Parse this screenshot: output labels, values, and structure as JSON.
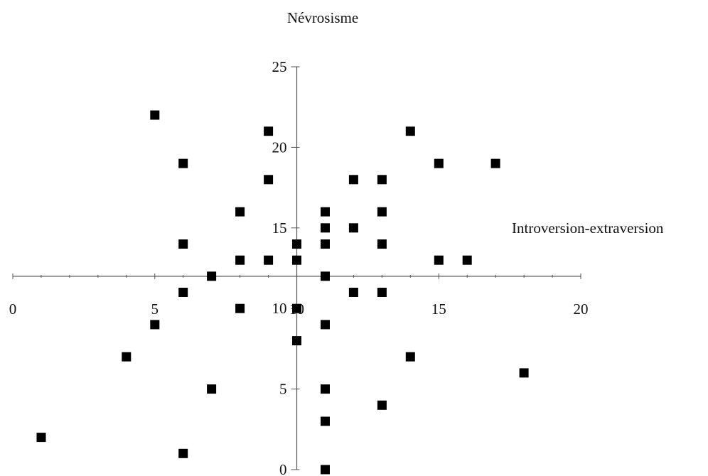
{
  "chart_data": {
    "type": "scatter",
    "title": "",
    "xlabel": "Introversion-extraversion",
    "ylabel": "Névrosisme",
    "xlim": [
      0,
      20
    ],
    "ylim": [
      0,
      25
    ],
    "x_ticks": [
      "0",
      "5",
      "10",
      "15",
      "20"
    ],
    "y_ticks": [
      "0",
      "5",
      "10",
      "15",
      "20",
      "25"
    ],
    "axis_crossing": {
      "x": 10,
      "y": 12
    },
    "grid": false,
    "legend": "none",
    "marker": "square",
    "marker_color": "#000000",
    "points": [
      {
        "x": 5,
        "y": 22
      },
      {
        "x": 9,
        "y": 21
      },
      {
        "x": 14,
        "y": 21
      },
      {
        "x": 6,
        "y": 19
      },
      {
        "x": 15,
        "y": 19
      },
      {
        "x": 17,
        "y": 19
      },
      {
        "x": 9,
        "y": 18
      },
      {
        "x": 12,
        "y": 18
      },
      {
        "x": 13,
        "y": 18
      },
      {
        "x": 8,
        "y": 16
      },
      {
        "x": 11,
        "y": 16
      },
      {
        "x": 13,
        "y": 16
      },
      {
        "x": 11,
        "y": 15
      },
      {
        "x": 12,
        "y": 15
      },
      {
        "x": 6,
        "y": 14
      },
      {
        "x": 10,
        "y": 14
      },
      {
        "x": 11,
        "y": 14
      },
      {
        "x": 13,
        "y": 14
      },
      {
        "x": 8,
        "y": 13
      },
      {
        "x": 9,
        "y": 13
      },
      {
        "x": 10,
        "y": 13
      },
      {
        "x": 15,
        "y": 13
      },
      {
        "x": 16,
        "y": 13
      },
      {
        "x": 7,
        "y": 12
      },
      {
        "x": 11,
        "y": 12
      },
      {
        "x": 6,
        "y": 11
      },
      {
        "x": 12,
        "y": 11
      },
      {
        "x": 13,
        "y": 11
      },
      {
        "x": 8,
        "y": 10
      },
      {
        "x": 10,
        "y": 10
      },
      {
        "x": 5,
        "y": 9
      },
      {
        "x": 11,
        "y": 9
      },
      {
        "x": 10,
        "y": 8
      },
      {
        "x": 4,
        "y": 7
      },
      {
        "x": 14,
        "y": 7
      },
      {
        "x": 18,
        "y": 6
      },
      {
        "x": 7,
        "y": 5
      },
      {
        "x": 11,
        "y": 5
      },
      {
        "x": 13,
        "y": 4
      },
      {
        "x": 11,
        "y": 3
      },
      {
        "x": 1,
        "y": 2
      },
      {
        "x": 6,
        "y": 1
      },
      {
        "x": 11,
        "y": 0
      }
    ]
  }
}
